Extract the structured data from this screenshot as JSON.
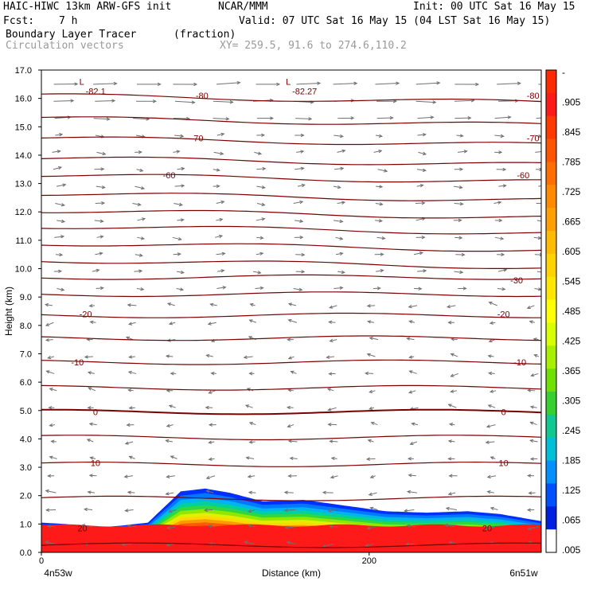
{
  "header": {
    "title": "HAIC-HIWC 13km ARW-GFS init",
    "org": "NCAR/MMM",
    "init": "Init: 00 UTC Sat 16 May 15",
    "fcst_label": "Fcst:",
    "fcst_value": "7 h",
    "valid": "Valid: 07 UTC Sat 16 May 15 (04 LST Sat 16 May 15)",
    "field": "Boundary Layer Tracer",
    "units": "(fraction)",
    "vectors": "Circulation vectors",
    "xy": "XY= 259.5, 91.6 to 274.6,110.2"
  },
  "chart_data": {
    "type": "heatmap",
    "ylabel": "Height (km)",
    "xlabel": "Distance (km)",
    "xlim": [
      0,
      305
    ],
    "ylim": [
      0,
      17
    ],
    "y_ticks": [
      "0.0",
      "1.0",
      "2.0",
      "3.0",
      "4.0",
      "5.0",
      "6.0",
      "7.0",
      "8.0",
      "9.0",
      "10.0",
      "11.0",
      "12.0",
      "13.0",
      "14.0",
      "15.0",
      "16.0",
      "17.0"
    ],
    "x_ticks": [
      {
        "value": 0,
        "label": "0"
      },
      {
        "value": 200,
        "label": "200"
      }
    ],
    "x_end_labels": {
      "left": "4n53w",
      "right": "6n51w"
    },
    "colorbar": {
      "labels": [
        "-",
        ".905",
        ".845",
        ".785",
        ".725",
        ".665",
        ".605",
        ".545",
        ".485",
        ".425",
        ".365",
        ".305",
        ".245",
        ".185",
        ".125",
        ".065",
        ".005"
      ],
      "colors": [
        "#ff2a00",
        "#ff1a1a",
        "#ff3a00",
        "#ff5500",
        "#ff6e00",
        "#ff8a00",
        "#ffa000",
        "#ffbb00",
        "#ffd200",
        "#ffe600",
        "#ffff00",
        "#d8ff00",
        "#a8f000",
        "#70e000",
        "#38d030",
        "#10c890",
        "#00c0d8",
        "#0090ff",
        "#0050ff",
        "#0020e0",
        "#ffffff"
      ]
    },
    "tracer_top_km": [
      {
        "x": 0,
        "h": 1.05
      },
      {
        "x": 15,
        "h": 1.0
      },
      {
        "x": 30,
        "h": 0.85
      },
      {
        "x": 50,
        "h": 0.95
      },
      {
        "x": 65,
        "h": 1.05
      },
      {
        "x": 85,
        "h": 2.15
      },
      {
        "x": 100,
        "h": 2.25
      },
      {
        "x": 115,
        "h": 2.1
      },
      {
        "x": 135,
        "h": 1.8
      },
      {
        "x": 160,
        "h": 1.85
      },
      {
        "x": 185,
        "h": 1.65
      },
      {
        "x": 210,
        "h": 1.45
      },
      {
        "x": 235,
        "h": 1.4
      },
      {
        "x": 260,
        "h": 1.45
      },
      {
        "x": 280,
        "h": 1.35
      },
      {
        "x": 305,
        "h": 1.1
      }
    ],
    "isotherm_labels": [
      {
        "label": "-80",
        "x": 98,
        "y": 16.1
      },
      {
        "label": "-80",
        "x": 300,
        "y": 16.1
      },
      {
        "label": "-70",
        "x": 95,
        "y": 14.6
      },
      {
        "label": "-70",
        "x": 300,
        "y": 14.6
      },
      {
        "label": "-60",
        "x": 78,
        "y": 13.3
      },
      {
        "label": "-60",
        "x": 294,
        "y": 13.3
      },
      {
        "label": "-30",
        "x": 290,
        "y": 9.6
      },
      {
        "label": "-20",
        "x": 27,
        "y": 8.4
      },
      {
        "label": "-20",
        "x": 282,
        "y": 8.4
      },
      {
        "label": "-10",
        "x": 22,
        "y": 6.7
      },
      {
        "label": "-10",
        "x": 292,
        "y": 6.7
      },
      {
        "label": "0",
        "x": 33,
        "y": 4.95
      },
      {
        "label": "0",
        "x": 282,
        "y": 4.95
      },
      {
        "label": "10",
        "x": 33,
        "y": 3.15
      },
      {
        "label": "10",
        "x": 282,
        "y": 3.15
      },
      {
        "label": "20",
        "x": 25,
        "y": 0.85
      },
      {
        "label": "20",
        "x": 272,
        "y": 0.85
      }
    ],
    "lows": [
      {
        "mark": "L",
        "value": "-82.1",
        "x": 28,
        "y": 16.6
      },
      {
        "mark": "L",
        "value": "-82.27",
        "x": 154,
        "y": 16.6
      }
    ],
    "isotherm_heights_km": [
      0.25,
      1.9,
      3.1,
      4.05,
      4.95,
      5.8,
      6.7,
      7.55,
      8.35,
      9.1,
      9.7,
      10.3,
      10.9,
      11.5,
      12.05,
      12.65,
      13.3,
      13.9,
      14.6,
      15.3,
      16.1
    ]
  }
}
